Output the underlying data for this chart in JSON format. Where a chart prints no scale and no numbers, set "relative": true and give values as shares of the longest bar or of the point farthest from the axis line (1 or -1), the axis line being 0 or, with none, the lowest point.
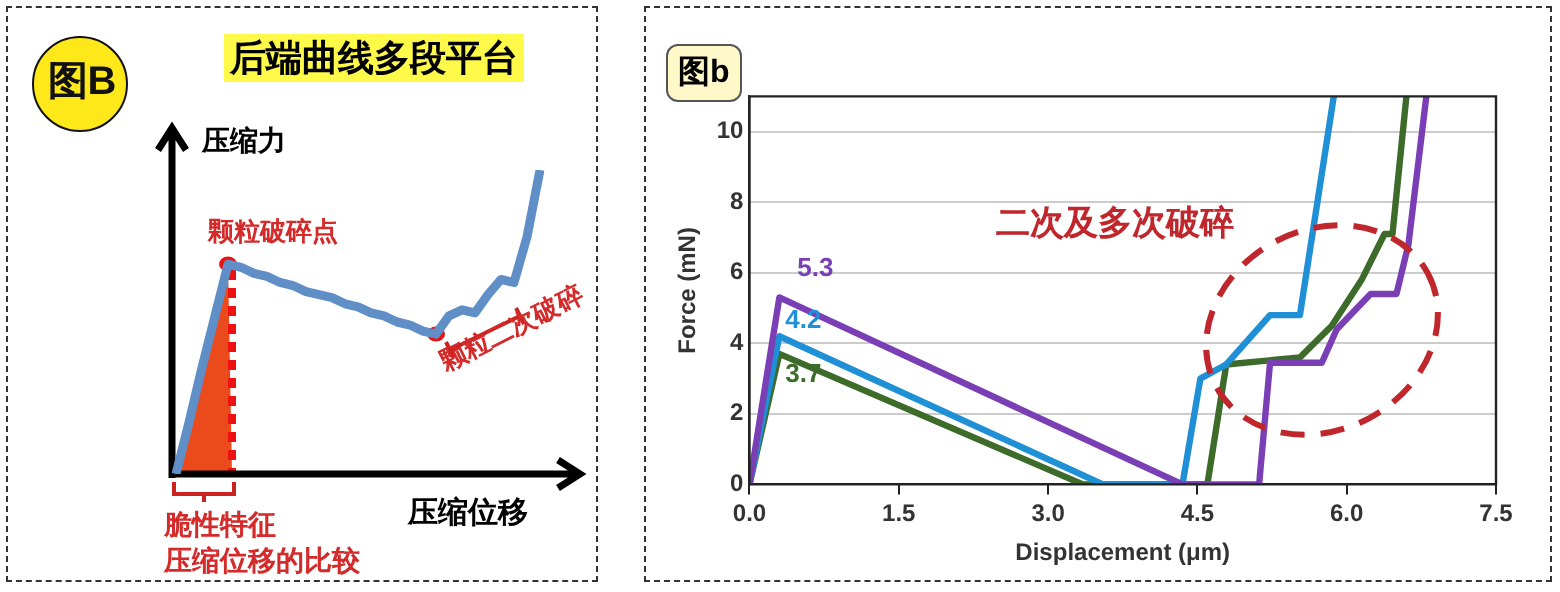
{
  "chart_data": [
    {
      "type": "line",
      "relative": true,
      "title": "后端曲线多段平台",
      "xlabel": "压缩位移",
      "ylabel": "压缩力",
      "categories": [
        null,
        null,
        null,
        null,
        null,
        null,
        null,
        null,
        null,
        null,
        null,
        null,
        null,
        null,
        null,
        null,
        null,
        null,
        null,
        null,
        null,
        null,
        null,
        null,
        null,
        null,
        null,
        null,
        null
      ],
      "series": [
        {
          "color": "#5f8fc6",
          "values": [
            0,
            0.17,
            0.35,
            0.52,
            0.69,
            0.68,
            0.66,
            0.65,
            0.63,
            0.62,
            0.6,
            0.59,
            0.58,
            0.56,
            0.55,
            0.53,
            0.52,
            0.5,
            0.49,
            0.47,
            0.46,
            0.52,
            0.54,
            0.53,
            0.59,
            0.64,
            0.63,
            0.78,
            1
          ]
        }
      ],
      "annotations": [
        "图B",
        "颗粒破碎点",
        "颗粒二次破碎",
        "脆性特征",
        "压缩位移的比较"
      ]
    },
    {
      "type": "line",
      "title": "图b",
      "xlabel": "Displacement (μm)",
      "ylabel": "Force (mN)",
      "xlim": [
        0,
        7.5
      ],
      "xticks": [
        {
          "value": 0,
          "label": "0.0"
        },
        {
          "value": 1.5,
          "label": "1.5"
        },
        {
          "value": 3,
          "label": "3.0"
        },
        {
          "value": 4.5,
          "label": "4.5"
        },
        {
          "value": 6,
          "label": "6.0"
        },
        {
          "value": 7.5,
          "label": "7.5"
        }
      ],
      "ylim": [
        0,
        11
      ],
      "yticks": [
        0,
        2,
        4,
        6,
        8,
        10
      ],
      "grid": "y",
      "legend": false,
      "marker": "none",
      "line_style": "solid",
      "series": [
        {
          "color": "#7b3fb5",
          "x": [
            0,
            0.3,
            4.35,
            5.12,
            5.23,
            5.75,
            5.9,
            6.24,
            6.5,
            6.62,
            6.8
          ],
          "values": [
            0,
            5.3,
            0,
            0,
            3.45,
            3.45,
            4.4,
            5.4,
            5.4,
            6.8,
            11
          ],
          "value_labels": [
            null,
            "5.3",
            null,
            null,
            null,
            null,
            null,
            null,
            null,
            null,
            null
          ]
        },
        {
          "color": "#1f8fd6",
          "x": [
            0,
            0.3,
            3.55,
            4.35,
            4.53,
            4.79,
            5.23,
            5.53,
            5.87
          ],
          "values": [
            0,
            4.2,
            0,
            0,
            3.0,
            3.4,
            4.8,
            4.8,
            11
          ],
          "value_labels": [
            null,
            "4.2",
            null,
            null,
            null,
            null,
            null,
            null,
            null
          ]
        },
        {
          "color": "#3d6b2a",
          "x": [
            0,
            0.3,
            3.35,
            4.6,
            4.79,
            5.53,
            5.85,
            6.15,
            6.38,
            6.46,
            6.6
          ],
          "values": [
            0,
            3.7,
            0,
            0,
            3.4,
            3.6,
            4.5,
            5.8,
            7.1,
            7.1,
            11
          ],
          "value_labels": [
            null,
            "3.7",
            null,
            null,
            null,
            null,
            null,
            null,
            null,
            null,
            null
          ]
        }
      ],
      "annotations": [
        "二次及多次破碎"
      ]
    }
  ]
}
